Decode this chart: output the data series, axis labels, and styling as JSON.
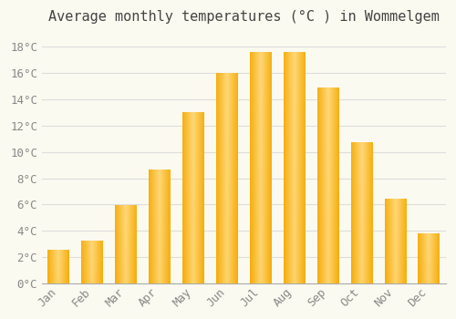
{
  "title": "Average monthly temperatures (°C ) in Wommelgem",
  "months": [
    "Jan",
    "Feb",
    "Mar",
    "Apr",
    "May",
    "Jun",
    "Jul",
    "Aug",
    "Sep",
    "Oct",
    "Nov",
    "Dec"
  ],
  "values": [
    2.5,
    3.2,
    5.9,
    8.6,
    13.0,
    16.0,
    17.6,
    17.6,
    14.9,
    10.7,
    6.4,
    3.8
  ],
  "bar_color_light": "#FFD878",
  "bar_color_dark": "#F5A800",
  "background_color": "#FAFAF0",
  "grid_color": "#DDDDDD",
  "ylim": [
    0,
    19
  ],
  "yticks": [
    0,
    2,
    4,
    6,
    8,
    10,
    12,
    14,
    16,
    18
  ],
  "title_fontsize": 11,
  "tick_fontsize": 9,
  "font_family": "monospace"
}
